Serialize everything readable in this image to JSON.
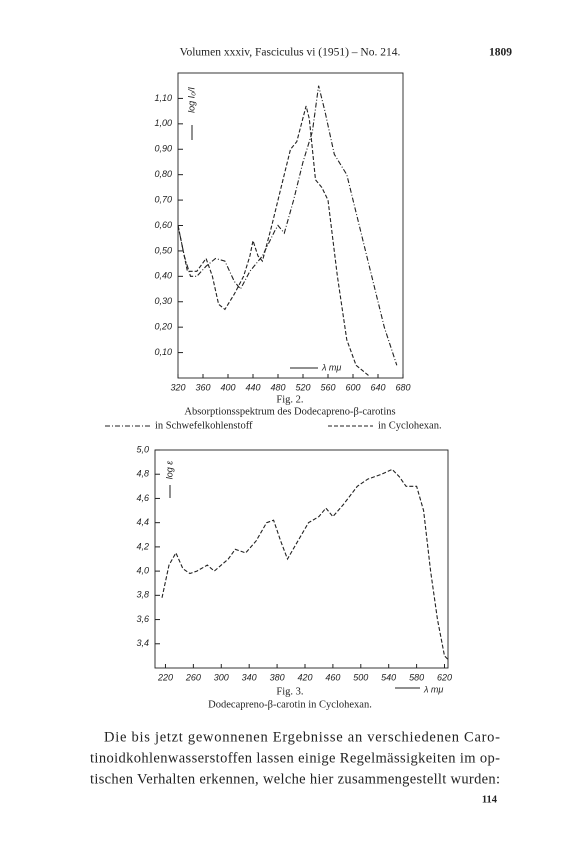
{
  "header": {
    "title": "Volumen xxxiv, Fasciculus vi (1951) – No. 214.",
    "page": "1809"
  },
  "chart_data": [
    {
      "type": "line",
      "figure_label": "Fig. 2.",
      "caption": "Absorptionsspektrum des Dodecapreno-β-carotins",
      "y_label": "log I₀/I",
      "x_label": "λ mμ",
      "xlim": [
        320,
        680
      ],
      "xticks": [
        320,
        360,
        400,
        440,
        480,
        520,
        560,
        600,
        640,
        680
      ],
      "ylim": [
        0,
        1.2
      ],
      "yticks": [
        {
          "value": 0.1,
          "label": "0,10"
        },
        {
          "value": 0.2,
          "label": "0,20"
        },
        {
          "value": 0.3,
          "label": "0,30"
        },
        {
          "value": 0.4,
          "label": "0,40"
        },
        {
          "value": 0.5,
          "label": "0,50"
        },
        {
          "value": 0.6,
          "label": "0,60"
        },
        {
          "value": 0.7,
          "label": "0,70"
        },
        {
          "value": 0.8,
          "label": "0,80"
        },
        {
          "value": 0.9,
          "label": "0,90"
        },
        {
          "value": 1.0,
          "label": "1,00"
        },
        {
          "value": 1.1,
          "label": "1,10"
        }
      ],
      "series": [
        {
          "name": "in Schwefelkohlenstoff",
          "color": "#222",
          "dash": "dashdot",
          "x": [
            320,
            330,
            340,
            350,
            365,
            380,
            395,
            410,
            420,
            435,
            455,
            475,
            480,
            490,
            505,
            520,
            535,
            545,
            555,
            570,
            590,
            620,
            650,
            670
          ],
          "values": [
            0.6,
            0.48,
            0.4,
            0.4,
            0.44,
            0.47,
            0.46,
            0.38,
            0.35,
            0.42,
            0.48,
            0.58,
            0.6,
            0.57,
            0.7,
            0.85,
            0.97,
            1.15,
            1.05,
            0.88,
            0.8,
            0.5,
            0.2,
            0.05
          ]
        },
        {
          "name": "in Cyclohexan.",
          "color": "#222",
          "dash": "dashed",
          "x": [
            320,
            335,
            350,
            365,
            375,
            385,
            395,
            410,
            425,
            435,
            440,
            448,
            455,
            470,
            485,
            500,
            510,
            525,
            530,
            540,
            550,
            560,
            575,
            590,
            605,
            625
          ],
          "values": [
            0.6,
            0.42,
            0.42,
            0.47,
            0.4,
            0.29,
            0.27,
            0.33,
            0.4,
            0.48,
            0.54,
            0.48,
            0.46,
            0.6,
            0.75,
            0.9,
            0.93,
            1.07,
            1.02,
            0.78,
            0.75,
            0.7,
            0.4,
            0.15,
            0.05,
            0.01
          ]
        }
      ]
    },
    {
      "type": "line",
      "figure_label": "Fig. 3.",
      "caption": "Dodecapreno-β-carotin in Cyclohexan.",
      "y_label": "log ε",
      "x_label": "λ mμ",
      "xlim": [
        205,
        625
      ],
      "xticks": [
        220,
        260,
        300,
        340,
        380,
        420,
        460,
        500,
        540,
        580,
        620
      ],
      "ylim": [
        3.2,
        5.0
      ],
      "yticks": [
        {
          "value": 3.4,
          "label": "3,4"
        },
        {
          "value": 3.6,
          "label": "3,6"
        },
        {
          "value": 3.8,
          "label": "3,8"
        },
        {
          "value": 4.0,
          "label": "4,0"
        },
        {
          "value": 4.2,
          "label": "4,2"
        },
        {
          "value": 4.4,
          "label": "4,4"
        },
        {
          "value": 4.6,
          "label": "4,6"
        },
        {
          "value": 4.8,
          "label": "4,8"
        },
        {
          "value": 5.0,
          "label": "5,0"
        }
      ],
      "series": [
        {
          "name": "Cyclohexan",
          "color": "#222",
          "dash": "dashed",
          "x": [
            215,
            225,
            235,
            245,
            255,
            265,
            280,
            290,
            310,
            320,
            335,
            350,
            365,
            375,
            385,
            395,
            410,
            425,
            440,
            450,
            460,
            475,
            495,
            510,
            530,
            545,
            555,
            565,
            580,
            590,
            600,
            610,
            620,
            625
          ],
          "values": [
            3.78,
            4.05,
            4.15,
            4.02,
            3.98,
            4.0,
            4.05,
            4.0,
            4.1,
            4.18,
            4.15,
            4.25,
            4.4,
            4.42,
            4.25,
            4.1,
            4.25,
            4.4,
            4.45,
            4.52,
            4.45,
            4.55,
            4.7,
            4.76,
            4.8,
            4.84,
            4.78,
            4.7,
            4.7,
            4.5,
            4.0,
            3.6,
            3.3,
            3.27
          ]
        }
      ]
    }
  ],
  "paragraph": [
    "Die bis jetzt gewonnenen Ergebnisse an verschiedenen Caro-",
    "tinoidkohlenwasserstoffen lassen einige Regelmässigkeiten im op-",
    "tischen Verhalten erkennen, welche hier zusammengestellt wurden:"
  ],
  "footer": "114"
}
